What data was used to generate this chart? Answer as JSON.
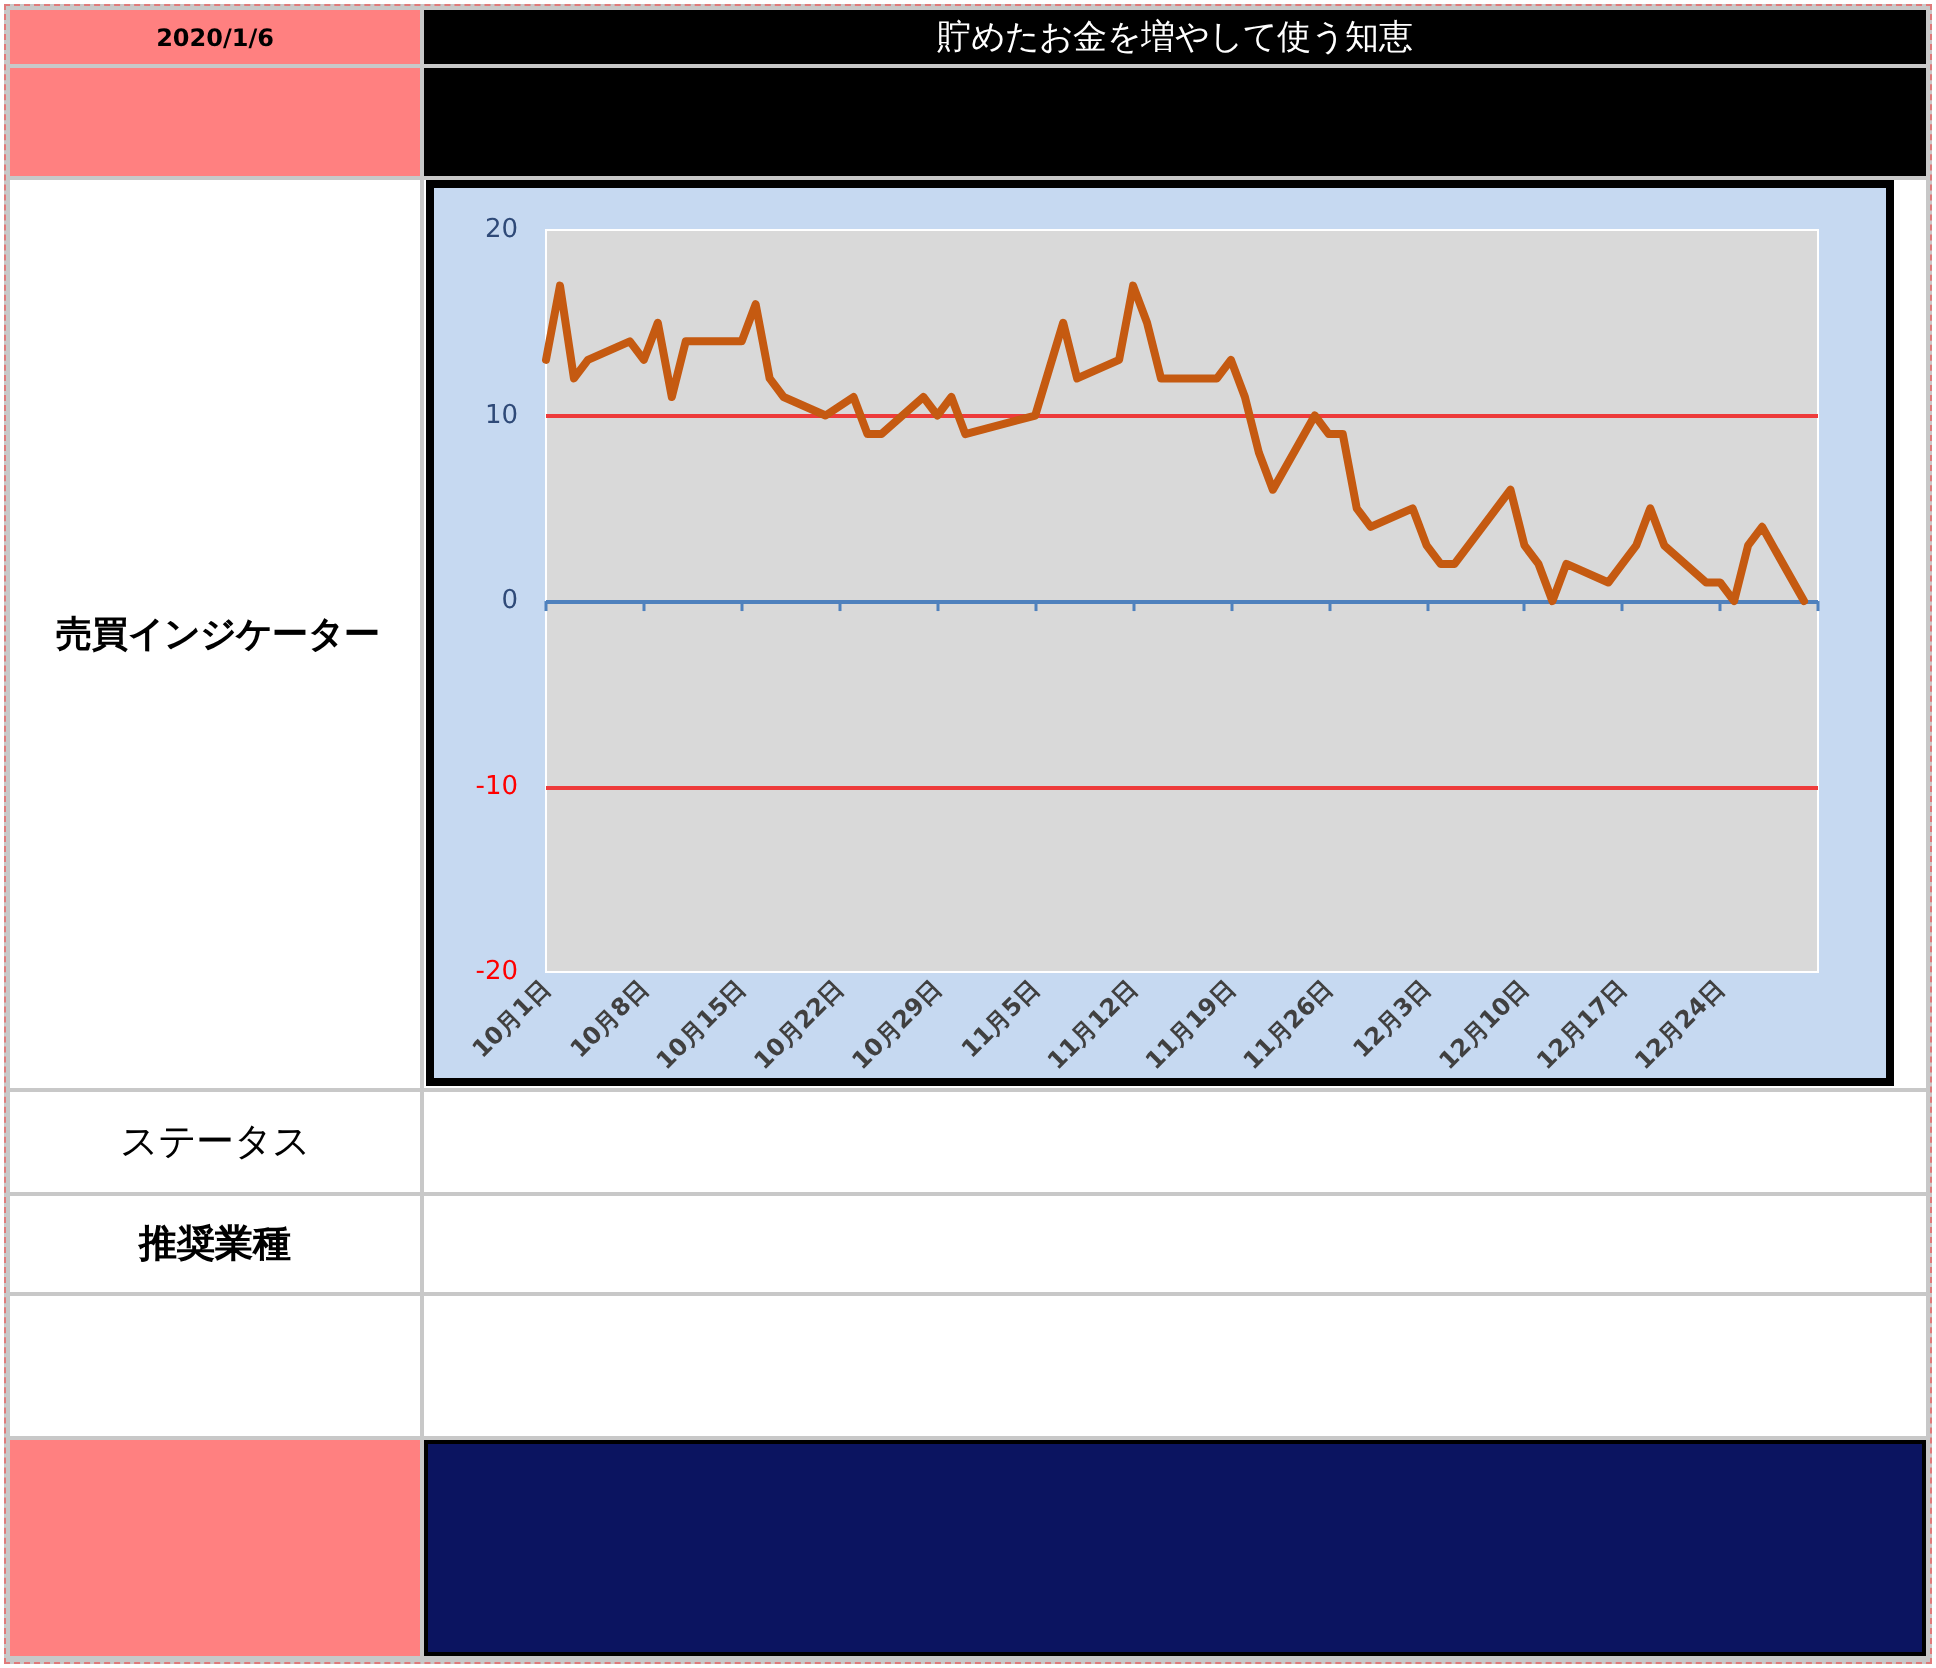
{
  "chart_data": {
    "type": "line",
    "title": "貯めたお金を増やして使う知恵",
    "ylabel": "売買インジケーター",
    "annotations": [
      "2020/1/6",
      "ステータス",
      "推奨業種"
    ],
    "x": [
      "--10-01",
      "--10-02",
      "--10-03",
      "--10-04",
      "--10-07",
      "--10-08",
      "--10-09",
      "--10-10",
      "--10-11",
      "--10-15",
      "--10-16",
      "--10-17",
      "--10-18",
      "--10-21",
      "--10-23",
      "--10-24",
      "--10-25",
      "--10-28",
      "--10-29",
      "--10-30",
      "--10-31",
      "--11-05",
      "--11-07",
      "--11-08",
      "--11-11",
      "--11-12",
      "--11-13",
      "--11-14",
      "--11-15",
      "--11-18",
      "--11-19",
      "--11-20",
      "--11-21",
      "--11-22",
      "--11-25",
      "--11-26",
      "--11-27",
      "--11-28",
      "--11-29",
      "--12-02",
      "--12-03",
      "--12-04",
      "--12-05",
      "--12-06",
      "--12-09",
      "--12-10",
      "--12-11",
      "--12-12",
      "--12-13",
      "--12-16",
      "--12-17",
      "--12-18",
      "--12-19",
      "--12-20",
      "--12-23",
      "--12-24",
      "--12-25",
      "--12-26",
      "--12-27",
      "--12-30"
    ],
    "values": [
      13,
      17,
      12,
      13,
      14,
      13,
      15,
      11,
      14,
      14,
      16,
      12,
      11,
      10,
      11,
      9,
      9,
      11,
      10,
      11,
      9,
      10,
      15,
      12,
      13,
      17,
      15,
      12,
      12,
      12,
      13,
      11,
      8,
      6,
      10,
      9,
      9,
      5,
      4,
      5,
      3,
      2,
      2,
      3,
      6,
      3,
      2,
      0,
      2,
      1,
      2,
      3,
      5,
      3,
      1,
      1,
      0,
      3,
      4,
      0
    ],
    "color": "#c55a11",
    "xlim": [
      "--10-01",
      "--12-31"
    ],
    "xticks": [
      {
        "value": "--10-01",
        "label": "10月1日"
      },
      {
        "value": "--10-08",
        "label": "10月8日"
      },
      {
        "value": "--10-15",
        "label": "10月15日"
      },
      {
        "value": "--10-22",
        "label": "10月22日"
      },
      {
        "value": "--10-29",
        "label": "10月29日"
      },
      {
        "value": "--11-05",
        "label": "11月5日"
      },
      {
        "value": "--11-12",
        "label": "11月12日"
      },
      {
        "value": "--11-19",
        "label": "11月19日"
      },
      {
        "value": "--11-26",
        "label": "11月26日"
      },
      {
        "value": "--12-03",
        "label": "12月3日"
      },
      {
        "value": "--12-10",
        "label": "12月10日"
      },
      {
        "value": "--12-17",
        "label": "12月17日"
      },
      {
        "value": "--12-24",
        "label": "12月24日"
      },
      {
        "value": "--12-31",
        "label": null
      }
    ],
    "ylim": [
      -20,
      20
    ],
    "yticks": [
      -20,
      -10,
      0,
      10,
      20
    ],
    "ref_lines": [
      {
        "axis": "y",
        "value": 10,
        "color": "#ee3b3b"
      },
      {
        "axis": "y",
        "value": -10,
        "color": "#ee3b3b"
      },
      {
        "axis": "y",
        "value": 0,
        "color": "#4f81bd"
      }
    ]
  }
}
